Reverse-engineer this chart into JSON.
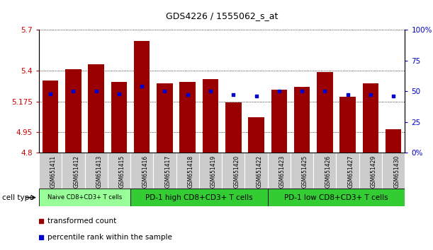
{
  "title": "GDS4226 / 1555062_s_at",
  "samples": [
    "GSM651411",
    "GSM651412",
    "GSM651413",
    "GSM651415",
    "GSM651416",
    "GSM651417",
    "GSM651418",
    "GSM651419",
    "GSM651420",
    "GSM651422",
    "GSM651423",
    "GSM651425",
    "GSM651426",
    "GSM651427",
    "GSM651429",
    "GSM651430"
  ],
  "transformed_count": [
    5.33,
    5.41,
    5.45,
    5.32,
    5.62,
    5.31,
    5.32,
    5.34,
    5.17,
    5.06,
    5.26,
    5.28,
    5.39,
    5.21,
    5.31,
    4.97
  ],
  "percentile_rank": [
    48,
    50,
    50,
    48,
    54,
    50,
    47,
    50,
    47,
    46,
    50,
    50,
    50,
    47,
    47,
    46
  ],
  "ylim_left": [
    4.8,
    5.7
  ],
  "ylim_right": [
    0,
    100
  ],
  "yticks_left": [
    4.8,
    4.95,
    5.175,
    5.4,
    5.7
  ],
  "yticks_right": [
    0,
    25,
    50,
    75,
    100
  ],
  "bar_color": "#990000",
  "blue_color": "#0000cc",
  "bar_width": 0.7,
  "baseline": 4.8,
  "tick_color_left": "#cc0000",
  "tick_color_right": "#0000cc",
  "group_colors": [
    "#99ff99",
    "#33cc33",
    "#33cc33"
  ],
  "group_labels": [
    "Naive CD8+CD3+ T cells",
    "PD-1 high CD8+CD3+ T cells",
    "PD-1 low CD8+CD3+ T cells"
  ],
  "group_ranges": [
    [
      0,
      3
    ],
    [
      4,
      9
    ],
    [
      10,
      15
    ]
  ],
  "legend_labels": [
    "transformed count",
    "percentile rank within the sample"
  ],
  "legend_colors": [
    "#990000",
    "#0000cc"
  ]
}
